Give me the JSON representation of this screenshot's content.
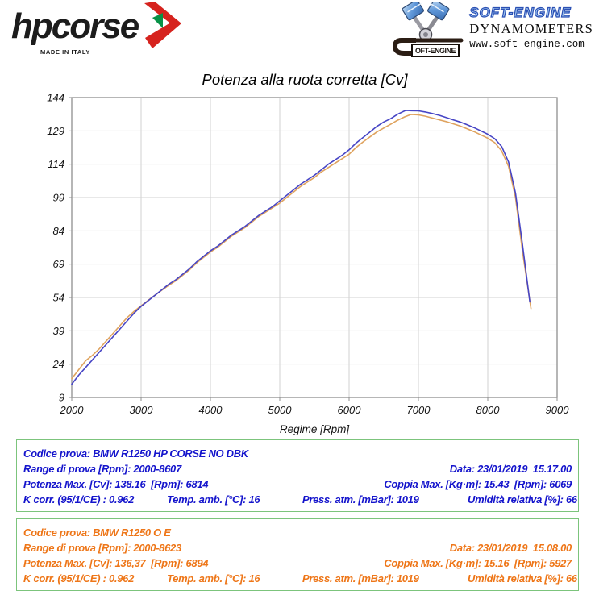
{
  "header": {
    "hpcorse": {
      "brand": "hpcorse",
      "tagline": "MADE IN ITALY"
    },
    "softengine": {
      "name": "SOFT-ENGINE",
      "subtitle": "DYNAMOMETERS",
      "url": "www.soft-engine.com",
      "logo_text": "OFT-ENGINE"
    }
  },
  "chart_data": {
    "type": "line",
    "title": "Potenza alla ruota corretta [Cv]",
    "xlabel": "Regime [Rpm]",
    "ylabel": "",
    "xlim": [
      2000,
      9000
    ],
    "ylim": [
      9,
      144
    ],
    "x_ticks": [
      2000,
      3000,
      4000,
      5000,
      6000,
      7000,
      8000,
      9000
    ],
    "y_ticks": [
      9,
      24,
      39,
      54,
      69,
      84,
      99,
      114,
      129,
      144
    ],
    "grid": true,
    "legend": "none",
    "colors": {
      "grid": "#d2d2d2",
      "axis": "#8f8f8f"
    },
    "series": [
      {
        "name": "BMW R1250 HP CORSE NO DBK",
        "color": "#4745c5",
        "points": [
          [
            2000,
            15
          ],
          [
            2100,
            19
          ],
          [
            2200,
            22.5
          ],
          [
            2300,
            26
          ],
          [
            2400,
            29.5
          ],
          [
            2500,
            33
          ],
          [
            2600,
            36.5
          ],
          [
            2700,
            40
          ],
          [
            2800,
            43.5
          ],
          [
            2900,
            47
          ],
          [
            3000,
            50
          ],
          [
            3100,
            52.5
          ],
          [
            3200,
            55
          ],
          [
            3300,
            57.5
          ],
          [
            3400,
            60
          ],
          [
            3500,
            62
          ],
          [
            3600,
            64.5
          ],
          [
            3700,
            67
          ],
          [
            3800,
            70
          ],
          [
            3900,
            72.5
          ],
          [
            4000,
            75
          ],
          [
            4100,
            77
          ],
          [
            4200,
            79.5
          ],
          [
            4300,
            82
          ],
          [
            4400,
            84
          ],
          [
            4500,
            86
          ],
          [
            4600,
            88.5
          ],
          [
            4700,
            91
          ],
          [
            4800,
            93
          ],
          [
            4900,
            95
          ],
          [
            5000,
            97.5
          ],
          [
            5100,
            100
          ],
          [
            5200,
            102.5
          ],
          [
            5300,
            105
          ],
          [
            5400,
            107
          ],
          [
            5500,
            109
          ],
          [
            5600,
            111.5
          ],
          [
            5700,
            114
          ],
          [
            5800,
            116
          ],
          [
            5900,
            118
          ],
          [
            6000,
            120.5
          ],
          [
            6100,
            123.5
          ],
          [
            6200,
            126
          ],
          [
            6300,
            128.5
          ],
          [
            6400,
            131
          ],
          [
            6500,
            133
          ],
          [
            6600,
            134.5
          ],
          [
            6700,
            136.5
          ],
          [
            6814,
            138.2
          ],
          [
            6900,
            138.1
          ],
          [
            7000,
            138
          ],
          [
            7100,
            137.5
          ],
          [
            7200,
            136.8
          ],
          [
            7300,
            136
          ],
          [
            7400,
            135
          ],
          [
            7500,
            134
          ],
          [
            7600,
            133
          ],
          [
            7700,
            131.8
          ],
          [
            7800,
            130.5
          ],
          [
            7900,
            129
          ],
          [
            8000,
            127.5
          ],
          [
            8100,
            125.5
          ],
          [
            8200,
            122
          ],
          [
            8300,
            115
          ],
          [
            8400,
            101
          ],
          [
            8500,
            78
          ],
          [
            8607,
            52
          ]
        ]
      },
      {
        "name": "BMW R1250 O E",
        "color": "#dfa35f",
        "points": [
          [
            2000,
            17.5
          ],
          [
            2100,
            21.5
          ],
          [
            2200,
            25.5
          ],
          [
            2300,
            28
          ],
          [
            2400,
            31
          ],
          [
            2500,
            34.5
          ],
          [
            2600,
            38
          ],
          [
            2700,
            41.5
          ],
          [
            2800,
            45
          ],
          [
            2900,
            47.8
          ],
          [
            3000,
            50.3
          ],
          [
            3100,
            52.7
          ],
          [
            3200,
            55
          ],
          [
            3300,
            57.3
          ],
          [
            3400,
            59.5
          ],
          [
            3500,
            61.5
          ],
          [
            3600,
            64
          ],
          [
            3700,
            66.5
          ],
          [
            3800,
            69.5
          ],
          [
            3900,
            72
          ],
          [
            4000,
            74.5
          ],
          [
            4100,
            76.5
          ],
          [
            4200,
            79
          ],
          [
            4300,
            81.5
          ],
          [
            4400,
            83.5
          ],
          [
            4500,
            85.5
          ],
          [
            4600,
            88
          ],
          [
            4700,
            90.5
          ],
          [
            4800,
            92.5
          ],
          [
            4900,
            94.5
          ],
          [
            5000,
            96.5
          ],
          [
            5100,
            99
          ],
          [
            5200,
            101.5
          ],
          [
            5300,
            104
          ],
          [
            5400,
            106
          ],
          [
            5500,
            108
          ],
          [
            5600,
            110.5
          ],
          [
            5700,
            112.5
          ],
          [
            5800,
            114.5
          ],
          [
            5900,
            116.5
          ],
          [
            6000,
            118.5
          ],
          [
            6100,
            121.5
          ],
          [
            6200,
            124
          ],
          [
            6300,
            126.3
          ],
          [
            6400,
            128.5
          ],
          [
            6500,
            130.3
          ],
          [
            6600,
            132
          ],
          [
            6700,
            133.8
          ],
          [
            6800,
            135.3
          ],
          [
            6894,
            136.4
          ],
          [
            7000,
            136.2
          ],
          [
            7100,
            135.6
          ],
          [
            7200,
            134.8
          ],
          [
            7300,
            134
          ],
          [
            7400,
            133.2
          ],
          [
            7500,
            132.2
          ],
          [
            7600,
            131.2
          ],
          [
            7700,
            130
          ],
          [
            7800,
            128.7
          ],
          [
            7900,
            127.2
          ],
          [
            8000,
            125.7
          ],
          [
            8100,
            123.7
          ],
          [
            8200,
            120
          ],
          [
            8300,
            113
          ],
          [
            8400,
            99
          ],
          [
            8500,
            75
          ],
          [
            8623,
            49
          ]
        ]
      }
    ]
  },
  "tests": [
    {
      "color": "#1414cc",
      "codice": "Codice prova: BMW R1250 HP CORSE NO DBK",
      "range": "Range di prova [Rpm]: 2000-8607",
      "data": "Data: 23/01/2019  15.17.00",
      "potenza": "Potenza Max. [Cv]: 138.16  [Rpm]: 6814",
      "coppia": "Coppia Max. [Kg·m]: 15.43  [Rpm]: 6069",
      "kcorr": "K corr. (95/1/CE) : 0.962",
      "temp": "Temp. amb. [°C]: 16",
      "press": "Press. atm. [mBar]: 1019",
      "umidita": "Umidità relativa [%]: 66"
    },
    {
      "color": "#ee7618",
      "codice": "Codice prova: BMW R1250 O E",
      "range": "Range di prova [Rpm]: 2000-8623",
      "data": "Data: 23/01/2019  15.08.00",
      "potenza": "Potenza Max. [Cv]: 136,37  [Rpm]: 6894",
      "coppia": "Coppia Max. [Kg·m]: 15.16  [Rpm]: 5927",
      "kcorr": "K corr. (95/1/CE) : 0.962",
      "temp": "Temp. amb. [°C]: 16",
      "press": "Press. atm. [mBar]: 1019",
      "umidita": "Umidità relativa [%]: 66"
    }
  ]
}
